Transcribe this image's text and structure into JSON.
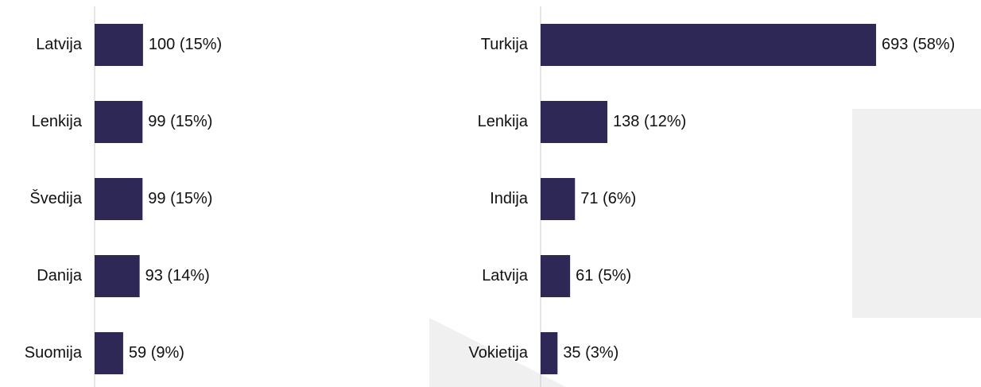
{
  "chart_data": [
    {
      "type": "bar",
      "orientation": "horizontal",
      "color": "#2e2857",
      "categories": [
        "Latvija",
        "Lenkija",
        "Švedija",
        "Danija",
        "Suomija"
      ],
      "values": [
        100,
        99,
        99,
        93,
        59
      ],
      "value_labels": [
        "100 (15%)",
        "99 (15%)",
        "99 (15%)",
        "93 (14%)",
        "59 (9%)"
      ]
    },
    {
      "type": "bar",
      "orientation": "horizontal",
      "color": "#2e2857",
      "categories": [
        "Turkija",
        "Lenkija",
        "Indija",
        "Latvija",
        "Vokietija"
      ],
      "values": [
        693,
        138,
        71,
        61,
        35
      ],
      "value_labels": [
        "693 (58%)",
        "138 (12%)",
        "71 (6%)",
        "61 (5%)",
        "35 (3%)"
      ]
    }
  ]
}
